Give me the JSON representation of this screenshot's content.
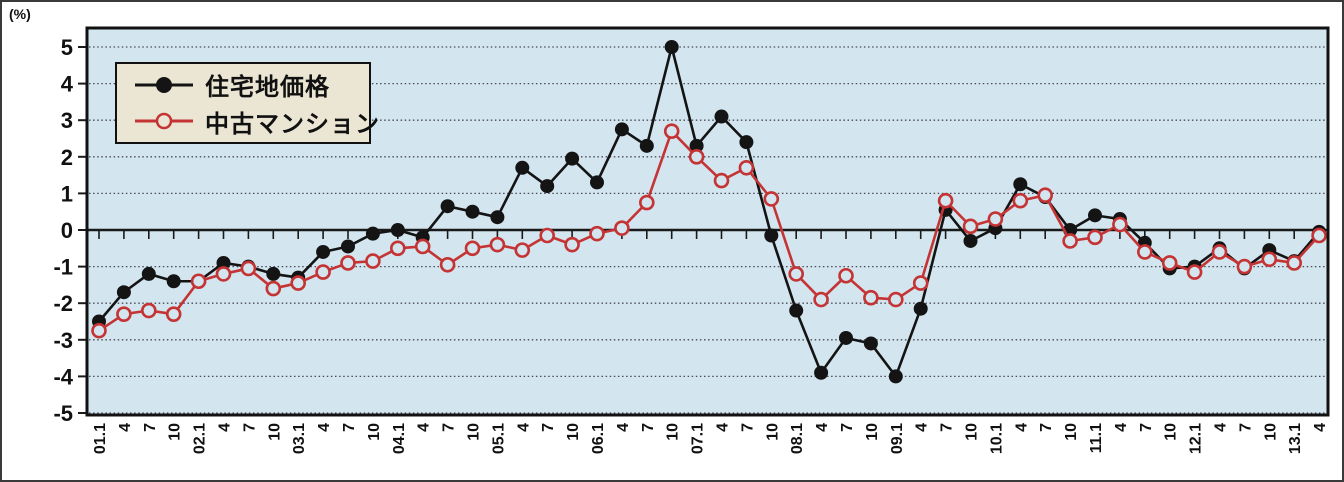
{
  "chart": {
    "y_axis_unit": "(%)"
  },
  "chart_data": {
    "type": "line",
    "title": "",
    "xlabel": "",
    "ylabel": "(%)",
    "ylim": [
      -5,
      5
    ],
    "y_ticks": [
      5,
      4,
      3,
      2,
      1,
      0,
      -1,
      -2,
      -3,
      -4,
      -5
    ],
    "grid": "dotted-horizontal",
    "legend_position": "top-left",
    "plot_bg": "#d3e5ef",
    "x_labels": [
      "01.1",
      "4",
      "7",
      "10",
      "02.1",
      "4",
      "7",
      "10",
      "03.1",
      "4",
      "7",
      "10",
      "04.1",
      "4",
      "7",
      "10",
      "05.1",
      "4",
      "7",
      "10",
      "06.1",
      "4",
      "7",
      "10",
      "07.1",
      "4",
      "7",
      "10",
      "08.1",
      "4",
      "7",
      "10",
      "09.1",
      "4",
      "7",
      "10",
      "10.1",
      "4",
      "7",
      "10",
      "11.1",
      "4",
      "7",
      "10",
      "12.1",
      "4",
      "7",
      "10",
      "13.1",
      "4"
    ],
    "series": [
      {
        "name": "住宅地価格",
        "color": "#141414",
        "marker": "filled-circle",
        "values": [
          -2.5,
          -1.7,
          -1.2,
          -1.4,
          -1.4,
          -0.9,
          -1.0,
          -1.2,
          -1.3,
          -0.6,
          -0.45,
          -0.1,
          0.0,
          -0.2,
          0.65,
          0.5,
          0.35,
          1.7,
          1.2,
          1.95,
          1.3,
          2.75,
          2.3,
          5.0,
          2.3,
          3.1,
          2.4,
          -0.15,
          -2.2,
          -3.9,
          -2.95,
          -3.1,
          -4.0,
          -2.15,
          0.55,
          -0.3,
          0.05,
          1.25,
          0.9,
          0.0,
          0.4,
          0.3,
          -0.35,
          -1.05,
          -1.0,
          -0.5,
          -1.05,
          -0.55,
          -0.85,
          -0.05
        ]
      },
      {
        "name": "中古マンション",
        "color": "#c53434",
        "marker": "open-circle",
        "values": [
          -2.75,
          -2.3,
          -2.2,
          -2.3,
          -1.4,
          -1.2,
          -1.05,
          -1.6,
          -1.45,
          -1.15,
          -0.9,
          -0.85,
          -0.5,
          -0.45,
          -0.95,
          -0.5,
          -0.4,
          -0.55,
          -0.15,
          -0.4,
          -0.1,
          0.05,
          0.75,
          2.7,
          2.0,
          1.35,
          1.7,
          0.85,
          -1.2,
          -1.9,
          -1.25,
          -1.85,
          -1.9,
          -1.45,
          0.8,
          0.1,
          0.3,
          0.8,
          0.95,
          -0.3,
          -0.2,
          0.15,
          -0.6,
          -0.9,
          -1.15,
          -0.6,
          -1.0,
          -0.8,
          -0.9,
          -0.15
        ]
      }
    ]
  }
}
